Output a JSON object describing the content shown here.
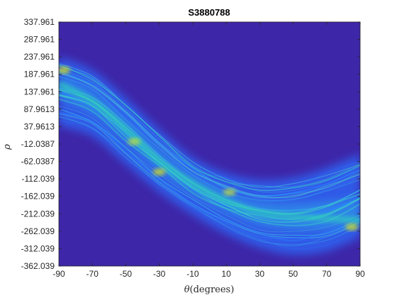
{
  "chart_data": {
    "type": "heatmap",
    "title": "S3880788",
    "xlabel_symbol": "θ",
    "xlabel_unit": "(degrees)",
    "ylabel": "ρ",
    "xlim": [
      -90,
      90
    ],
    "ylim": [
      -362.039,
      337.961
    ],
    "x_ticks": [
      -90,
      -70,
      -50,
      -30,
      -10,
      10,
      30,
      50,
      70,
      90
    ],
    "x_tick_labels": [
      "-90",
      "-70",
      "-50",
      "-30",
      "-10",
      "10",
      "30",
      "50",
      "70",
      "90"
    ],
    "y_ticks": [
      337.961,
      287.961,
      237.961,
      187.961,
      137.961,
      87.9613,
      37.9613,
      -12.0387,
      -62.0387,
      -112.039,
      -162.039,
      -212.039,
      -262.039,
      -312.039,
      -362.039
    ],
    "y_tick_labels": [
      "337.961",
      "287.961",
      "237.961",
      "187.961",
      "137.961",
      "87.9613",
      "37.9613",
      "-12.0387",
      "-62.0387",
      "-112.039",
      "-162.039",
      "-212.039",
      "-262.039",
      "-312.039",
      "-362.039"
    ],
    "colormap": "parula",
    "background_color": "#3e26a8",
    "band": {
      "description_none": "",
      "theta": [
        -90,
        -70,
        -50,
        -30,
        -10,
        10,
        30,
        50,
        70,
        90
      ],
      "rho_upper": [
        237.961,
        200,
        120,
        30,
        -50,
        -95,
        -115,
        -108,
        -80,
        -40
      ],
      "rho_center": [
        160,
        110,
        30,
        -60,
        -125,
        -175,
        -210,
        -220,
        -225,
        -230
      ],
      "rho_lower": [
        40,
        10,
        -70,
        -150,
        -215,
        -270,
        -310,
        -330,
        -320,
        -280
      ]
    },
    "hotspots": [
      {
        "theta": -87,
        "rho": 200
      },
      {
        "theta": -45,
        "rho": -5
      },
      {
        "theta": -30,
        "rho": -92
      },
      {
        "theta": 12,
        "rho": -150
      },
      {
        "theta": 85,
        "rho": -250
      }
    ]
  }
}
